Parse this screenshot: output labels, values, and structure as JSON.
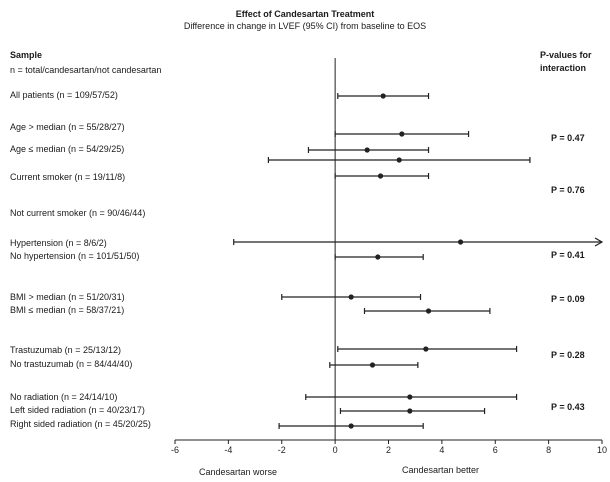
{
  "figure": {
    "title": "Effect of Candesartan Treatment",
    "subtitle": "Difference in change in LVEF (95% CI) from baseline to EOS",
    "left_header": [
      "Sample",
      "n = total/candesartan/not candesartan"
    ],
    "right_header": [
      "P-values for",
      "interaction"
    ]
  },
  "chart_data": {
    "type": "forest",
    "title": "Effect of Candesartan Treatment",
    "subtitle": "Difference in change in LVEF (95% CI) from baseline to EOS",
    "xlim": [
      -6,
      10
    ],
    "xticks": [
      -6,
      -4,
      -2,
      0,
      2,
      4,
      6,
      8,
      10
    ],
    "reference_line": 0,
    "xlabel_left": "Candesartan worse",
    "xlabel_right": "Candesartan better",
    "rows": [
      {
        "label": "All patients (n = 109/57/52)",
        "estimate": 1.8,
        "lower": 0.1,
        "upper": 3.5
      },
      {
        "label": "Age > median (n = 55/28/27)",
        "estimate": 2.5,
        "lower": 0.0,
        "upper": 5.0
      },
      {
        "label": "Age ≤ median (n = 54/29/25)",
        "estimate": 1.2,
        "lower": -1.0,
        "upper": 3.5
      },
      {
        "label": "Current smoker (n = 19/11/8)",
        "estimate": 2.4,
        "lower": -2.5,
        "upper": 7.3
      },
      {
        "label": "Not current smoker (n = 90/46/44)",
        "estimate": 1.7,
        "lower": 0.0,
        "upper": 3.5
      },
      {
        "label": "Hypertension (n = 8/6/2)",
        "estimate": 4.7,
        "lower": -3.8,
        "upper": 10.0,
        "arrow_right": true
      },
      {
        "label": "No hypertension (n = 101/51/50)",
        "estimate": 1.6,
        "lower": 0.0,
        "upper": 3.3
      },
      {
        "label": "BMI > median (n = 51/20/31)",
        "estimate": 0.6,
        "lower": -2.0,
        "upper": 3.2
      },
      {
        "label": "BMI ≤ median (n = 58/37/21)",
        "estimate": 3.5,
        "lower": 1.1,
        "upper": 5.8
      },
      {
        "label": "Trastuzumab (n = 25/13/12)",
        "estimate": 3.4,
        "lower": 0.1,
        "upper": 6.8
      },
      {
        "label": "No trastuzumab (n = 84/44/40)",
        "estimate": 1.4,
        "lower": -0.2,
        "upper": 3.1
      },
      {
        "label": "No radiation (n = 24/14/10)",
        "estimate": 2.8,
        "lower": -1.1,
        "upper": 6.8
      },
      {
        "label": "Left sided radiation (n = 40/23/17)",
        "estimate": 2.8,
        "lower": 0.2,
        "upper": 5.6
      },
      {
        "label": "Right sided radiation (n = 45/20/25)",
        "estimate": 0.6,
        "lower": -2.1,
        "upper": 3.3
      }
    ],
    "p_values": [
      "P = 0.47",
      "P = 0.76",
      "P = 0.41",
      "P = 0.09",
      "P = 0.28",
      "P = 0.43"
    ]
  }
}
